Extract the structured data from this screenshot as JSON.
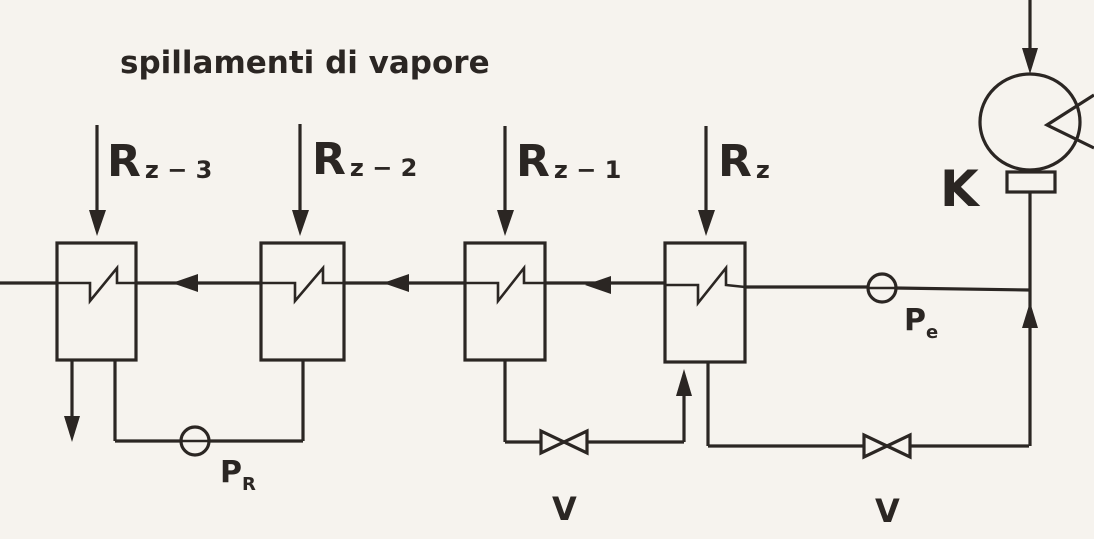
{
  "title": "spillamenti di vapore",
  "heaters": [
    {
      "main": "R",
      "sub": "z − 3"
    },
    {
      "main": "R",
      "sub": "z − 2"
    },
    {
      "main": "R",
      "sub": "z − 1"
    },
    {
      "main": "R",
      "sub": "z"
    }
  ],
  "condenser_label": "K",
  "pump_e": {
    "main": "P",
    "sub": "e"
  },
  "pump_r": {
    "main": "P",
    "sub": "R"
  },
  "valve_labels": [
    "V",
    "V"
  ]
}
